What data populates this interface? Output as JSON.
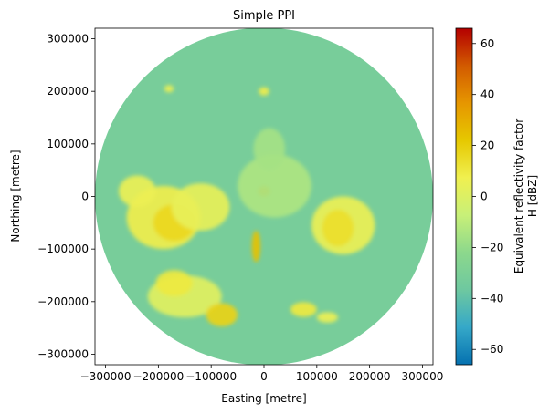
{
  "chart_data": {
    "type": "heatmap",
    "title": "Simple PPI",
    "xlabel": "Easting [metre]",
    "ylabel": "Northing [metre]",
    "xlim": [
      -320000,
      320000
    ],
    "ylim": [
      -320000,
      320000
    ],
    "x_ticks": [
      {
        "value": -300000,
        "label": "−300000"
      },
      {
        "value": -200000,
        "label": "−200000"
      },
      {
        "value": -100000,
        "label": "−100000"
      },
      {
        "value": 0,
        "label": "0"
      },
      {
        "value": 100000,
        "label": "100000"
      },
      {
        "value": 200000,
        "label": "200000"
      },
      {
        "value": 300000,
        "label": "300000"
      }
    ],
    "y_ticks": [
      {
        "value": 300000,
        "label": "300000"
      },
      {
        "value": 200000,
        "label": "200000"
      },
      {
        "value": 100000,
        "label": "100000"
      },
      {
        "value": 0,
        "label": "0"
      },
      {
        "value": -100000,
        "label": "−100000"
      },
      {
        "value": -200000,
        "label": "−200000"
      },
      {
        "value": -300000,
        "label": "−300000"
      }
    ],
    "range_km": 320,
    "background_value_dbz": -32,
    "colorbar": {
      "label_line1": "Equivalent reflectivity factor",
      "label_line2": "H [dBZ]",
      "vmin": -66,
      "vmax": 66,
      "ticks": [
        {
          "value": 60,
          "label": "60"
        },
        {
          "value": 40,
          "label": "40"
        },
        {
          "value": 20,
          "label": "20"
        },
        {
          "value": 0,
          "label": "0"
        },
        {
          "value": -20,
          "label": "−20"
        },
        {
          "value": -40,
          "label": "−40"
        },
        {
          "value": -60,
          "label": "−60"
        }
      ],
      "colormap": [
        "#0571b0",
        "#35a8c8",
        "#6ec8a0",
        "#8cd88c",
        "#c8f078",
        "#f0f050",
        "#e6c800",
        "#e69600",
        "#d25a00",
        "#b40000"
      ]
    },
    "echoes": [
      {
        "name": "west-cell",
        "x": -190000,
        "y": -40000,
        "rx": 70000,
        "ry": 60000,
        "dbz": 8
      },
      {
        "name": "west-core",
        "x": -170000,
        "y": -50000,
        "rx": 40000,
        "ry": 35000,
        "dbz": 16
      },
      {
        "name": "west-upper",
        "x": -240000,
        "y": 10000,
        "rx": 35000,
        "ry": 30000,
        "dbz": 6
      },
      {
        "name": "northwest-arm",
        "x": -120000,
        "y": -20000,
        "rx": 55000,
        "ry": 45000,
        "dbz": 4
      },
      {
        "name": "southwest-band",
        "x": -150000,
        "y": -190000,
        "rx": 70000,
        "ry": 40000,
        "dbz": 2
      },
      {
        "name": "southwest-core",
        "x": -80000,
        "y": -225000,
        "rx": 30000,
        "ry": 22000,
        "dbz": 18
      },
      {
        "name": "south-west-small",
        "x": -170000,
        "y": -165000,
        "rx": 35000,
        "ry": 25000,
        "dbz": 10
      },
      {
        "name": "east-cell",
        "x": 150000,
        "y": -55000,
        "rx": 60000,
        "ry": 55000,
        "dbz": 6
      },
      {
        "name": "east-core",
        "x": 140000,
        "y": -60000,
        "rx": 30000,
        "ry": 35000,
        "dbz": 14
      },
      {
        "name": "southeast-small",
        "x": 75000,
        "y": -215000,
        "rx": 25000,
        "ry": 14000,
        "dbz": 10
      },
      {
        "name": "southeast-tail",
        "x": 120000,
        "y": -230000,
        "rx": 20000,
        "ry": 10000,
        "dbz": 6
      },
      {
        "name": "center-clutter",
        "x": 0,
        "y": 10000,
        "rx": 12000,
        "ry": 10000,
        "dbz": 40
      },
      {
        "name": "center-streak",
        "x": -15000,
        "y": -95000,
        "rx": 8000,
        "ry": 30000,
        "dbz": 24
      },
      {
        "name": "center-plume",
        "x": 20000,
        "y": 20000,
        "rx": 70000,
        "ry": 60000,
        "dbz": -14
      },
      {
        "name": "north-plume",
        "x": 10000,
        "y": 90000,
        "rx": 30000,
        "ry": 40000,
        "dbz": -16
      },
      {
        "name": "north-spot",
        "x": 0,
        "y": 200000,
        "rx": 10000,
        "ry": 8000,
        "dbz": 8
      },
      {
        "name": "north-spot-2",
        "x": -180000,
        "y": 205000,
        "rx": 9000,
        "ry": 7000,
        "dbz": 6
      }
    ]
  }
}
